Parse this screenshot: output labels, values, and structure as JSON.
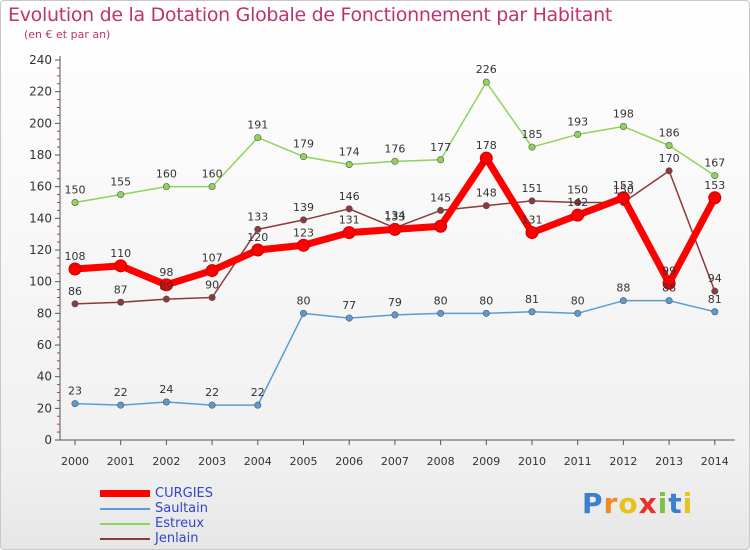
{
  "header": {
    "title": "Evolution de la Dotation Globale de Fonctionnement par Habitant",
    "subtitle": "(en € et par an)"
  },
  "brand": {
    "name": "Proxiti"
  },
  "chart_data": {
    "type": "line",
    "title": "Evolution de la Dotation Globale de Fonctionnement par Habitant",
    "subtitle": "(en € et par an)",
    "xlabel": "",
    "ylabel": "",
    "ylim": [
      0,
      240
    ],
    "yticks": [
      0,
      20,
      40,
      60,
      80,
      100,
      120,
      140,
      160,
      180,
      200,
      220,
      240
    ],
    "grid": false,
    "legend_position": "bottom-left",
    "x": [
      "2000",
      "2001",
      "2002",
      "2003",
      "2004",
      "2005",
      "2006",
      "2007",
      "2008",
      "2009",
      "2010",
      "2011",
      "2012",
      "2013",
      "2014"
    ],
    "series": [
      {
        "name": "CURGIES",
        "color": "#ff0000",
        "values": [
          108,
          110,
          98,
          107,
          120,
          123,
          131,
          133,
          135,
          178,
          131,
          142,
          153,
          99,
          153
        ],
        "labels": [
          "108",
          "110",
          "98",
          "107",
          "120",
          "123",
          "131",
          "133",
          "",
          "178",
          "131",
          "142",
          "153",
          "99",
          "153"
        ]
      },
      {
        "name": "Saultain",
        "color": "#5b9bd5",
        "values": [
          23,
          22,
          24,
          22,
          22,
          80,
          77,
          79,
          80,
          80,
          81,
          80,
          88,
          88,
          81
        ],
        "labels": [
          "23",
          "22",
          "24",
          "22",
          "22",
          "80",
          "77",
          "79",
          "80",
          "80",
          "81",
          "80",
          "88",
          "88",
          "81"
        ]
      },
      {
        "name": "Estreux",
        "color": "#8fd45a",
        "values": [
          150,
          155,
          160,
          160,
          191,
          179,
          174,
          176,
          177,
          226,
          185,
          193,
          198,
          186,
          167
        ],
        "labels": [
          "150",
          "155",
          "160",
          "160",
          "191",
          "179",
          "174",
          "176",
          "177",
          "226",
          "185",
          "193",
          "198",
          "186",
          "167"
        ]
      },
      {
        "name": "Jenlain",
        "color": "#8b3a3a",
        "values": [
          86,
          87,
          89,
          90,
          133,
          139,
          146,
          134,
          145,
          148,
          151,
          150,
          150,
          170,
          94
        ],
        "labels": [
          "86",
          "87",
          "89",
          "90",
          "133",
          "139",
          "146",
          "134",
          "145",
          "148",
          "151",
          "150",
          "150",
          "170",
          "94"
        ]
      }
    ]
  }
}
